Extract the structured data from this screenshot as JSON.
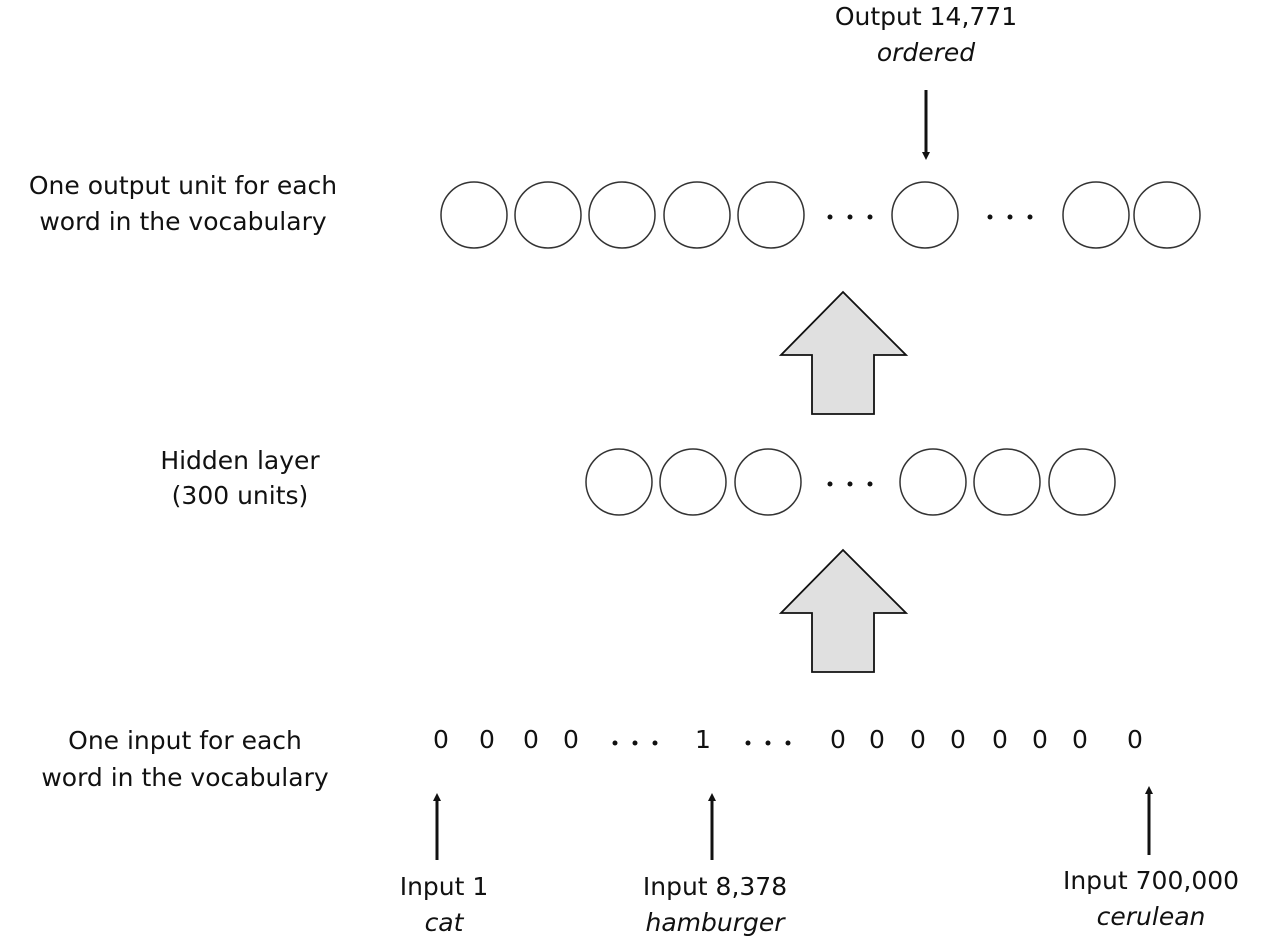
{
  "output_marker": {
    "label": "Output 14,771",
    "word": "ordered"
  },
  "output_layer": {
    "label": [
      "One output unit for each",
      "word in the vocabulary"
    ]
  },
  "hidden_layer": {
    "label": [
      "Hidden layer",
      "(300 units)"
    ]
  },
  "input_layer": {
    "label": [
      "One input for each",
      "word in the vocabulary"
    ],
    "digits": [
      "0",
      "0",
      "0",
      "0",
      "1",
      "0",
      "0",
      "0",
      "0",
      "0",
      "0",
      "0",
      "0"
    ]
  },
  "input_markers": [
    {
      "label": "Input 1",
      "word": "cat"
    },
    {
      "label": "Input 8,378",
      "word": "hamburger"
    },
    {
      "label": "Input 700,000",
      "word": "cerulean"
    }
  ]
}
